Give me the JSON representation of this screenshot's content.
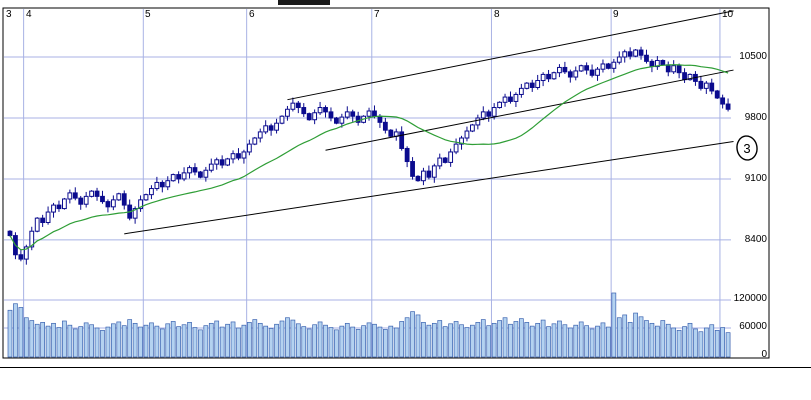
{
  "chart_data": {
    "type": "candlestick",
    "title": "",
    "x_axis": {
      "position": "top",
      "labels": [
        "3",
        "4",
        "5",
        "6",
        "7",
        "8",
        "9",
        "10"
      ],
      "month_start_days": [
        0,
        3,
        25,
        44,
        67,
        89,
        111,
        131
      ]
    },
    "y_axis_price": {
      "labels": [
        "10500",
        "9800",
        "9100",
        "8400"
      ],
      "values": [
        10500,
        9800,
        9100,
        8400
      ]
    },
    "y_axis_volume": {
      "labels": [
        "120000",
        "60000",
        "0"
      ],
      "values": [
        120000,
        60000,
        0
      ]
    },
    "first_open": 8500,
    "closes": [
      8450,
      8230,
      8180,
      8320,
      8500,
      8650,
      8600,
      8720,
      8800,
      8760,
      8870,
      8940,
      8880,
      8810,
      8900,
      8960,
      8900,
      8840,
      8780,
      8860,
      8930,
      8800,
      8650,
      8760,
      8860,
      8920,
      8990,
      9060,
      9010,
      9080,
      9150,
      9100,
      9170,
      9230,
      9180,
      9120,
      9200,
      9270,
      9320,
      9260,
      9330,
      9390,
      9340,
      9410,
      9500,
      9570,
      9640,
      9710,
      9660,
      9740,
      9820,
      9900,
      9970,
      9920,
      9850,
      9780,
      9860,
      9920,
      9870,
      9800,
      9740,
      9810,
      9870,
      9820,
      9750,
      9820,
      9880,
      9820,
      9750,
      9660,
      9590,
      9640,
      9450,
      9300,
      9130,
      9080,
      9190,
      9120,
      9250,
      9340,
      9290,
      9410,
      9500,
      9570,
      9650,
      9720,
      9800,
      9870,
      9820,
      9920,
      9980,
      10040,
      9990,
      10070,
      10140,
      10200,
      10150,
      10230,
      10300,
      10250,
      10320,
      10380,
      10330,
      10270,
      10340,
      10400,
      10350,
      10290,
      10360,
      10420,
      10370,
      10440,
      10500,
      10560,
      10510,
      10580,
      10520,
      10450,
      10390,
      10460,
      10410,
      10330,
      10400,
      10320,
      10240,
      10300,
      10220,
      10140,
      10200,
      10110,
      10030,
      9960,
      9900
    ],
    "volumes": [
      98000,
      112000,
      104000,
      82000,
      76000,
      68000,
      72000,
      64000,
      70000,
      61000,
      75000,
      66000,
      58000,
      63000,
      71000,
      67000,
      60000,
      55000,
      62000,
      69000,
      73000,
      65000,
      78000,
      70000,
      62000,
      66000,
      71000,
      64000,
      58000,
      69000,
      74000,
      63000,
      67000,
      72000,
      61000,
      56000,
      65000,
      70000,
      75000,
      62000,
      68000,
      73000,
      60000,
      66000,
      72000,
      78000,
      70000,
      64000,
      59000,
      68000,
      75000,
      82000,
      77000,
      69000,
      63000,
      58000,
      67000,
      73000,
      66000,
      61000,
      56000,
      64000,
      70000,
      62000,
      57000,
      65000,
      71000,
      68000,
      62000,
      57000,
      64000,
      60000,
      74000,
      82000,
      95000,
      88000,
      72000,
      66000,
      70000,
      76000,
      63000,
      69000,
      74000,
      67000,
      61000,
      66000,
      72000,
      78000,
      65000,
      70000,
      76000,
      82000,
      68000,
      74000,
      80000,
      72000,
      64000,
      70000,
      77000,
      63000,
      69000,
      75000,
      67000,
      60000,
      66000,
      73000,
      65000,
      58000,
      64000,
      71000,
      62000,
      135000,
      82000,
      88000,
      72000,
      92000,
      84000,
      76000,
      70000,
      64000,
      76000,
      68000,
      60000,
      55000,
      63000,
      70000,
      58000,
      52000,
      60000,
      67000,
      55000,
      61000,
      50000
    ],
    "moving_average_period": 22,
    "trendlines": [
      {
        "d1": 21,
        "p1": 8470,
        "d2": 133,
        "p2": 9530
      },
      {
        "d1": 58,
        "p1": 9430,
        "d2": 133,
        "p2": 10350
      },
      {
        "d1": 51,
        "p1": 10010,
        "d2": 133,
        "p2": 11030
      }
    ],
    "annotation": {
      "text": "3"
    }
  },
  "colors": {
    "up_fill": "#ffffff",
    "down_fill": "#0b0b8e",
    "candle_stroke": "#0b0b8e",
    "volume_fill": "#b4d2f0",
    "volume_stroke": "#3a62b0",
    "ma_line": "#2f9e36",
    "trend_line": "#000000",
    "grid": "#a8b2e4",
    "frame": "#000000",
    "annotation": "#000000"
  }
}
